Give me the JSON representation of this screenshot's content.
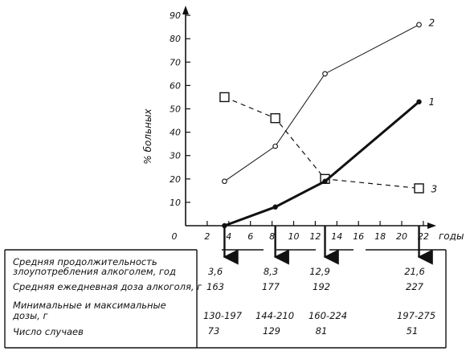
{
  "chart_data": {
    "type": "line",
    "ylabel": "% больных",
    "xlabel": "годы",
    "xlim": [
      0,
      23
    ],
    "ylim": [
      0,
      95
    ],
    "x_ticks": [
      "0",
      "2",
      "4",
      "6",
      "8",
      "10",
      "12",
      "14",
      "16",
      "18",
      "20",
      "22"
    ],
    "y_ticks": [
      "10",
      "20",
      "30",
      "40",
      "50",
      "60",
      "70",
      "80",
      "90"
    ],
    "grid": false,
    "series": [
      {
        "name": "1",
        "marker": "filled-circle",
        "line": "thick-solid",
        "x": [
          3.6,
          8.3,
          12.9,
          21.6
        ],
        "y": [
          0,
          8,
          19,
          53
        ]
      },
      {
        "name": "2",
        "marker": "open-circle",
        "line": "thin-solid",
        "x": [
          3.6,
          8.3,
          12.9,
          21.6
        ],
        "y": [
          19,
          34,
          65,
          86
        ]
      },
      {
        "name": "3",
        "marker": "open-square",
        "line": "dashed",
        "x": [
          3.6,
          8.3,
          12.9,
          21.6
        ],
        "y": [
          55,
          46,
          20,
          16
        ]
      }
    ],
    "arrows_x": [
      3.6,
      8.3,
      12.9,
      21.6
    ],
    "table": {
      "rows": [
        {
          "label_lines": [
            "Средняя продолжительность",
            "злоупотребления алкоголем, год"
          ],
          "values": [
            "3,6",
            "8,3",
            "12,9",
            "21,6"
          ]
        },
        {
          "label_lines": [
            "Средняя ежедневная доза алкоголя, г"
          ],
          "values": [
            "163",
            "177",
            "192",
            "227"
          ]
        },
        {
          "label_lines": [
            "Минимальные и максимальные",
            "дозы, г"
          ],
          "values": [
            "130-197",
            "144-210",
            "160-224",
            "197-275"
          ]
        },
        {
          "label_lines": [
            "Число случаев"
          ],
          "values": [
            "73",
            "129",
            "81",
            "51"
          ]
        }
      ]
    }
  }
}
